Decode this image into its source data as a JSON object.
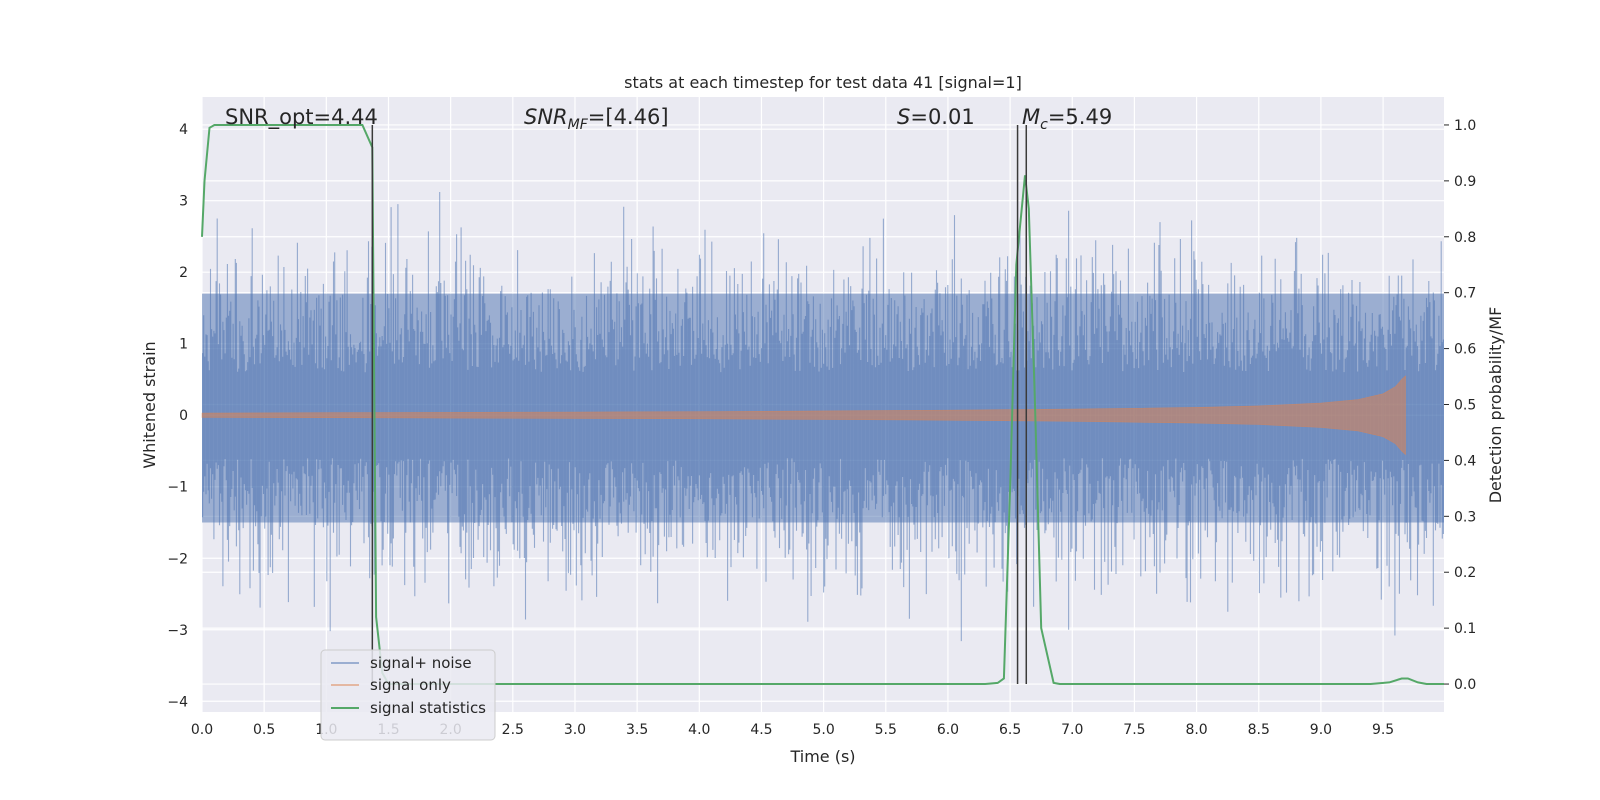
{
  "chart_data": {
    "type": "line",
    "title": "stats at each timestep for test data 41 [signal=1]",
    "xlabel": "Time (s)",
    "ylabel_left": "Whitened strain",
    "ylabel_right": "Detection probability/MF",
    "xlim": [
      0,
      9.99
    ],
    "ylim_left": [
      -4.15,
      4.45
    ],
    "ylim_right": [
      -0.05,
      1.05
    ],
    "x_ticks": [
      "0.0",
      "0.5",
      "1.0",
      "1.5",
      "2.0",
      "2.5",
      "3.0",
      "3.5",
      "4.0",
      "4.5",
      "5.0",
      "5.5",
      "6.0",
      "6.5",
      "7.0",
      "7.5",
      "8.0",
      "8.5",
      "9.0",
      "9.5"
    ],
    "y_left_ticks": [
      "4",
      "3",
      "2",
      "1",
      "0",
      "−1",
      "−2",
      "−3",
      "−4"
    ],
    "y_right_ticks": [
      "1.0",
      "0.9",
      "0.8",
      "0.7",
      "0.6",
      "0.5",
      "0.4",
      "0.3",
      "0.2",
      "0.1",
      "0.0"
    ],
    "grid": true,
    "legend_position": "lower-left",
    "annotations": {
      "snr_opt": "SNR_opt=4.44",
      "snr_mf_sym": "SNR",
      "snr_mf_sub": "MF",
      "snr_mf_val": "=[4.46]",
      "s_sym": "S",
      "s_val": "=0.01",
      "mc_sym": "M",
      "mc_sub": "c",
      "mc_val": "=5.49"
    },
    "vertical_lines_s": [
      1.37,
      6.56,
      6.63
    ],
    "series": [
      {
        "name": "signal+ noise",
        "color": "#4c72b0",
        "note": "white noise, envelope approx ±1.7 typical, peaks to about ±3.5"
      },
      {
        "name": "signal only",
        "color": "#dd8452",
        "envelope_x": [
          0,
          1,
          2,
          3,
          4,
          5,
          6,
          7,
          8,
          8.5,
          9,
          9.3,
          9.5,
          9.6,
          9.65,
          9.68
        ],
        "envelope_y": [
          0.03,
          0.035,
          0.04,
          0.045,
          0.05,
          0.06,
          0.07,
          0.085,
          0.11,
          0.13,
          0.17,
          0.22,
          0.3,
          0.4,
          0.5,
          0.55
        ]
      },
      {
        "name": "signal statistics",
        "color": "#55a868",
        "x": [
          0,
          0.02,
          0.06,
          0.1,
          0.15,
          0.5,
          1.0,
          1.2,
          1.29,
          1.37,
          1.4,
          1.45,
          1.5,
          2.0,
          3.0,
          4.0,
          5.0,
          6.0,
          6.3,
          6.4,
          6.45,
          6.5,
          6.55,
          6.62,
          6.65,
          6.7,
          6.75,
          6.85,
          6.9,
          7.0,
          8.0,
          9.0,
          9.4,
          9.55,
          9.65,
          9.7,
          9.78,
          9.85,
          9.99
        ],
        "y": [
          0.8,
          0.9,
          0.995,
          1.0,
          1.0,
          1.0,
          1.0,
          1.0,
          1.0,
          0.96,
          0.12,
          0.02,
          0.0,
          0.0,
          0.0,
          0.0,
          0.0,
          0.0,
          0.0,
          0.002,
          0.01,
          0.35,
          0.75,
          0.91,
          0.85,
          0.5,
          0.1,
          0.002,
          0.0,
          0.0,
          0.0,
          0.0,
          0.0,
          0.003,
          0.01,
          0.01,
          0.003,
          0.0,
          0.0
        ]
      }
    ]
  }
}
